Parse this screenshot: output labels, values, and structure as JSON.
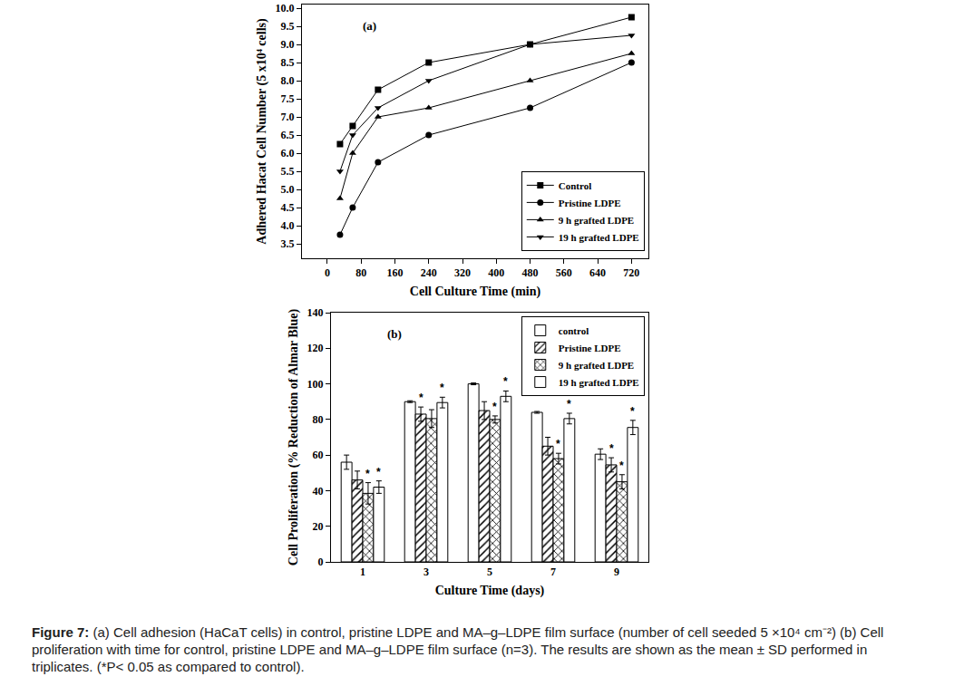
{
  "chart_data": [
    {
      "type": "line",
      "panel": "(a)",
      "x_label": "Cell Culture Time (min)",
      "y_label": "Adhered Hacat Cell Number (5 x10⁴ cells)",
      "x": [
        30,
        60,
        120,
        240,
        480,
        720
      ],
      "xlim": [
        -60,
        760
      ],
      "xticks": [
        0,
        80,
        160,
        240,
        320,
        400,
        480,
        560,
        640,
        720
      ],
      "ylim": [
        3.1,
        10.1
      ],
      "yticks": [
        {
          "value": 3.5,
          "label": "3.5"
        },
        {
          "value": 4,
          "label": "4.0"
        },
        {
          "value": 4.5,
          "label": "4.5"
        },
        {
          "value": 5,
          "label": "5.0"
        },
        {
          "value": 5.5,
          "label": "5.5"
        },
        {
          "value": 6,
          "label": "6.0"
        },
        {
          "value": 6.5,
          "label": "6.5"
        },
        {
          "value": 7,
          "label": "7.0"
        },
        {
          "value": 7.5,
          "label": "7.5"
        },
        {
          "value": 8,
          "label": "8.0"
        },
        {
          "value": 8.5,
          "label": "8.5"
        },
        {
          "value": 9,
          "label": "9.0"
        },
        {
          "value": 9.5,
          "label": "9.5"
        },
        {
          "value": 10,
          "label": "10.0"
        }
      ],
      "grid": false,
      "legend": "lower right",
      "series": [
        {
          "name": "Control",
          "color": "#000000",
          "marker": "square",
          "line_style": "solid",
          "values": [
            6.25,
            6.75,
            7.75,
            8.5,
            9.0,
            9.75
          ]
        },
        {
          "name": "Pristine LDPE",
          "color": "#000000",
          "marker": "circle",
          "line_style": "solid",
          "values": [
            3.75,
            4.5,
            5.75,
            6.5,
            7.25,
            8.5
          ]
        },
        {
          "name": "9 h grafted LDPE",
          "color": "#000000",
          "marker": "triangle-up",
          "line_style": "solid",
          "values": [
            4.75,
            6.0,
            7.0,
            7.25,
            8.0,
            8.75
          ]
        },
        {
          "name": "19 h grafted LDPE",
          "color": "#000000",
          "marker": "triangle-down",
          "line_style": "solid",
          "values": [
            5.5,
            6.5,
            7.25,
            8.0,
            9.0,
            9.25
          ]
        }
      ]
    },
    {
      "type": "bar",
      "panel": "(b)",
      "x_label": "Culture Time (days)",
      "y_label": "Cell Proliferation (% Reduction of Almar Blue)",
      "categories": [
        "1",
        "3",
        "5",
        "7",
        "9"
      ],
      "ylim": [
        0,
        140
      ],
      "yticks": [
        0,
        20,
        40,
        60,
        80,
        100,
        120,
        140
      ],
      "grid": false,
      "legend": "upper right",
      "series": [
        {
          "name": "control",
          "color": "#ffffff",
          "marker": "none",
          "values": [
            56,
            90,
            100,
            84,
            60.5
          ],
          "errors": [
            4,
            0.5,
            0.5,
            0.5,
            3
          ],
          "significance": [
            null,
            null,
            null,
            null,
            null
          ]
        },
        {
          "name": "Pristine LDPE",
          "color": "#ffffff",
          "marker": "/",
          "values": [
            46,
            83,
            85,
            65,
            54.5
          ],
          "errors": [
            5,
            4,
            5,
            5,
            4
          ],
          "significance": [
            null,
            "*",
            null,
            null,
            "*"
          ]
        },
        {
          "name": "9 h grafted LDPE",
          "color": "#ffffff",
          "marker": "x",
          "values": [
            38.5,
            80.5,
            80,
            58,
            45
          ],
          "errors": [
            6,
            5,
            2,
            3,
            4
          ],
          "significance": [
            "*",
            null,
            "*",
            "*",
            "*"
          ]
        },
        {
          "name": "19 h grafted LDPE",
          "color": "#ffffff",
          "marker": "none",
          "values": [
            42,
            89.5,
            93,
            80.5,
            75.5
          ],
          "errors": [
            3.5,
            3,
            3,
            3,
            4
          ],
          "significance": [
            "*",
            "*",
            "*",
            "*",
            "*"
          ]
        }
      ]
    }
  ],
  "caption": {
    "label": "Figure 7:",
    "text": " (a) Cell adhesion (HaCaT cells) in control, pristine LDPE and MA–g–LDPE film surface (number of cell seeded 5 ×10⁴ cm⁻²) (b) Cell proliferation with time for control, pristine LDPE and MA–g–LDPE film surface (n=3). The results are shown as the mean ± SD performed in triplicates. (*P< 0.05 as compared to control)."
  }
}
